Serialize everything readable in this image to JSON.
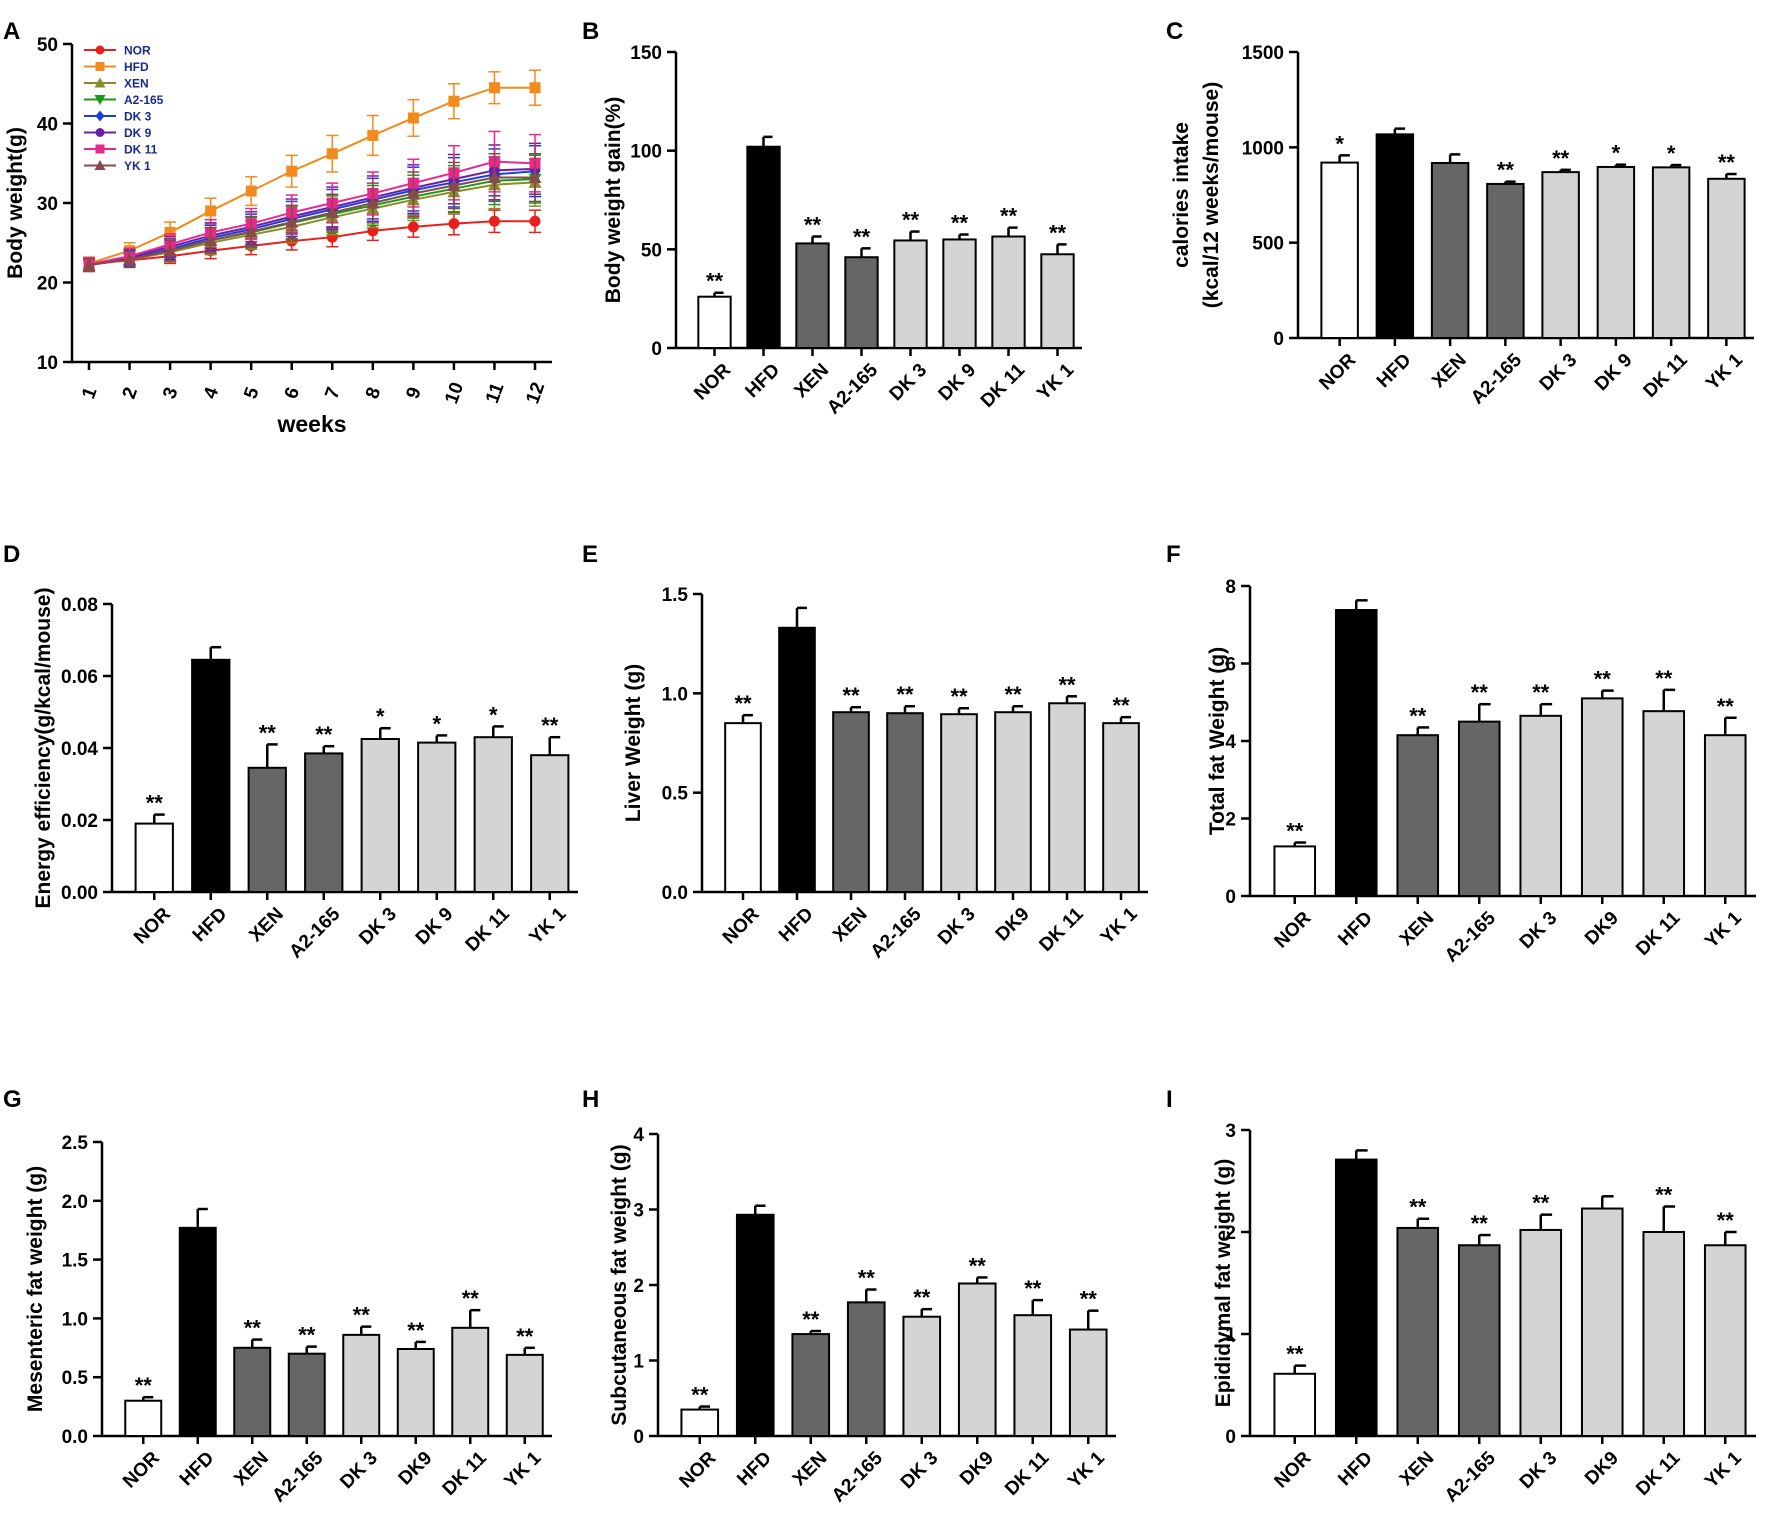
{
  "groups": [
    "NOR",
    "HFD",
    "XEN",
    "A2-165",
    "DK3",
    "DK9",
    "DK11",
    "YK1"
  ],
  "colors": {
    "NOR": "#ffffff",
    "HFD": "#000000",
    "XEN": "#666666",
    "A2-165": "#666666",
    "DK3": "#d4d4d4",
    "DK9": "#d4d4d4",
    "DK11": "#d4d4d4",
    "YK1": "#d4d4d4",
    "line_NOR": "#e8201c",
    "line_HFD": "#f28a1d",
    "line_XEN": "#8b8b2a",
    "line_A2-165": "#1a9a1a",
    "line_DK3": "#1d3fd6",
    "line_DK9": "#6a1fa8",
    "line_DK11": "#e8288c",
    "line_YK1": "#8a4a4a",
    "legend_text": "#1a2a8a"
  },
  "chart_data": [
    {
      "id": "A",
      "type": "line",
      "panel_letter": "A",
      "xlabel": "weeks",
      "ylabel": "Body weight(g)",
      "ylim": [
        10,
        50
      ],
      "yticks": [
        "10",
        "20",
        "30",
        "40",
        "50"
      ],
      "x": [
        1,
        2,
        3,
        4,
        5,
        6,
        7,
        8,
        9,
        10,
        11,
        12
      ],
      "xtick_labels": [
        "1",
        "2",
        "3",
        "4",
        "5",
        "6",
        "7",
        "8",
        "9",
        "10",
        "11",
        "12"
      ],
      "legend_labels": [
        "NOR",
        "HFD",
        "XEN",
        "A2-165",
        "DK 3",
        "DK 9",
        "DK 11",
        "YK 1"
      ],
      "legend_position": "top-left",
      "series": [
        {
          "name": "NOR",
          "marker": "circle",
          "color_key": "line_NOR",
          "values": [
            22.3,
            22.8,
            23.3,
            24.0,
            24.6,
            25.2,
            25.7,
            26.5,
            27.0,
            27.4,
            27.7,
            27.7
          ],
          "err": [
            0.8,
            0.8,
            0.9,
            1.0,
            1.1,
            1.1,
            1.2,
            1.2,
            1.3,
            1.4,
            1.4,
            1.4
          ]
        },
        {
          "name": "HFD",
          "marker": "square",
          "color_key": "line_HFD",
          "values": [
            22.4,
            24.0,
            26.3,
            29.0,
            31.5,
            34.0,
            36.2,
            38.5,
            40.7,
            42.8,
            44.5,
            44.5
          ],
          "err": [
            0.8,
            1.0,
            1.3,
            1.6,
            1.8,
            2.0,
            2.3,
            2.5,
            2.3,
            2.2,
            2.0,
            2.2
          ]
        },
        {
          "name": "XEN",
          "marker": "triangle",
          "color_key": "line_XEN",
          "values": [
            22.2,
            22.9,
            23.8,
            25.0,
            26.0,
            27.0,
            28.2,
            29.3,
            30.4,
            31.4,
            32.3,
            32.6
          ],
          "err": [
            0.8,
            1.0,
            1.2,
            1.5,
            1.8,
            2.0,
            2.2,
            2.4,
            2.6,
            2.8,
            3.0,
            3.0
          ]
        },
        {
          "name": "A2-165",
          "marker": "triangle-down",
          "color_key": "line_A2-165",
          "values": [
            22.2,
            23.0,
            24.0,
            25.3,
            26.3,
            27.5,
            28.6,
            29.7,
            30.8,
            31.8,
            32.8,
            33.0
          ],
          "err": [
            0.8,
            1.0,
            1.3,
            1.6,
            1.9,
            2.1,
            2.3,
            2.5,
            2.7,
            2.9,
            3.0,
            3.0
          ]
        },
        {
          "name": "DK 3",
          "marker": "diamond",
          "color_key": "line_DK3",
          "values": [
            22.2,
            23.0,
            24.2,
            25.6,
            26.7,
            28.0,
            29.2,
            30.4,
            31.6,
            32.6,
            33.6,
            34.0
          ],
          "err": [
            0.8,
            1.0,
            1.3,
            1.6,
            1.9,
            2.2,
            2.5,
            2.7,
            2.9,
            3.1,
            3.2,
            3.2
          ]
        },
        {
          "name": "DK 9",
          "marker": "circle",
          "color_key": "line_DK9",
          "values": [
            22.3,
            23.2,
            24.5,
            25.9,
            27.0,
            28.3,
            29.5,
            30.7,
            31.9,
            33.0,
            34.1,
            34.3
          ],
          "err": [
            0.8,
            1.0,
            1.3,
            1.6,
            1.9,
            2.2,
            2.5,
            2.7,
            2.9,
            3.1,
            3.2,
            3.2
          ]
        },
        {
          "name": "DK 11",
          "marker": "square",
          "color_key": "line_DK11",
          "values": [
            22.3,
            23.3,
            24.8,
            26.3,
            27.4,
            28.8,
            30.0,
            31.2,
            32.5,
            33.8,
            35.2,
            35.0
          ],
          "err": [
            0.8,
            1.0,
            1.3,
            1.6,
            1.9,
            2.2,
            2.5,
            2.7,
            3.0,
            3.4,
            3.8,
            3.6
          ]
        },
        {
          "name": "YK 1",
          "marker": "triangle",
          "color_key": "line_YK1",
          "values": [
            22.2,
            22.9,
            24.0,
            25.3,
            26.4,
            27.6,
            28.8,
            30.0,
            31.2,
            32.2,
            33.2,
            33.2
          ],
          "err": [
            0.8,
            1.0,
            1.3,
            1.6,
            1.9,
            2.1,
            2.3,
            2.5,
            2.7,
            2.9,
            3.0,
            3.0
          ]
        }
      ]
    },
    {
      "id": "B",
      "type": "bar",
      "panel_letter": "B",
      "ylabel": "Body weight gain(%)",
      "ylim": [
        0,
        150
      ],
      "yticks": [
        "0",
        "50",
        "100",
        "150"
      ],
      "categories": [
        "NOR",
        "HFD",
        "XEN",
        "A2-165",
        "DK 3",
        "DK 9",
        "DK 11",
        "YK 1"
      ],
      "values": [
        26,
        102,
        53,
        46,
        54.5,
        55,
        56.5,
        47.5
      ],
      "errors": [
        2,
        5,
        3.5,
        4.5,
        4.5,
        2.5,
        4.5,
        5
      ],
      "significance": [
        "**",
        "",
        "**",
        "**",
        "**",
        "**",
        "**",
        "**"
      ]
    },
    {
      "id": "C",
      "type": "bar",
      "panel_letter": "C",
      "ylabel": "calories intake",
      "ylabel2": "(kcal/12 weeks/mouse)",
      "ylim": [
        0,
        1500
      ],
      "yticks": [
        "0",
        "500",
        "1000",
        "1500"
      ],
      "categories": [
        "NOR",
        "HFD",
        "XEN",
        "A2-165",
        "DK 3",
        "DK 9",
        "DK 11",
        "YK 1"
      ],
      "values": [
        920,
        1068,
        918,
        808,
        870,
        897,
        895,
        835
      ],
      "errors": [
        38,
        30,
        45,
        12,
        12,
        12,
        12,
        25
      ],
      "significance": [
        "*",
        "",
        "",
        "**",
        "**",
        "*",
        "*",
        "**"
      ]
    },
    {
      "id": "D",
      "type": "bar",
      "panel_letter": "D",
      "ylabel": "Energy efficiency(g/kcal/mouse)",
      "ylim": [
        0,
        0.08
      ],
      "yticks": [
        "0.00",
        "0.02",
        "0.04",
        "0.06",
        "0.08"
      ],
      "categories": [
        "NOR",
        "HFD",
        "XEN",
        "A2-165",
        "DK 3",
        "DK 9",
        "DK 11",
        "YK 1"
      ],
      "values": [
        0.019,
        0.0645,
        0.0345,
        0.0385,
        0.0425,
        0.0415,
        0.043,
        0.038
      ],
      "errors": [
        0.0025,
        0.0035,
        0.0065,
        0.002,
        0.003,
        0.002,
        0.003,
        0.005
      ],
      "significance": [
        "**",
        "",
        "**",
        "**",
        "*",
        "*",
        "*",
        "**"
      ]
    },
    {
      "id": "E",
      "type": "bar",
      "panel_letter": "E",
      "ylabel": "Liver Weight (g)",
      "ylim": [
        0,
        1.5
      ],
      "yticks": [
        "0.0",
        "0.5",
        "1.0",
        "1.5"
      ],
      "categories": [
        "NOR",
        "HFD",
        "XEN",
        "A2-165",
        "DK 3",
        "DK9",
        "DK 11",
        "YK 1"
      ],
      "values": [
        0.85,
        1.33,
        0.905,
        0.9,
        0.895,
        0.905,
        0.95,
        0.85
      ],
      "errors": [
        0.04,
        0.1,
        0.025,
        0.035,
        0.03,
        0.03,
        0.035,
        0.03
      ],
      "significance": [
        "**",
        "",
        "**",
        "**",
        "**",
        "**",
        "**",
        "**"
      ]
    },
    {
      "id": "F",
      "type": "bar",
      "panel_letter": "F",
      "ylabel": "Total fat Weight (g)",
      "ylim": [
        0,
        8
      ],
      "yticks": [
        "0",
        "2",
        "4",
        "6",
        "8"
      ],
      "categories": [
        "NOR",
        "HFD",
        "XEN",
        "A2-165",
        "DK 3",
        "DK9",
        "DK 11",
        "YK 1"
      ],
      "values": [
        1.28,
        7.38,
        4.15,
        4.5,
        4.65,
        5.1,
        4.77,
        4.15
      ],
      "errors": [
        0.1,
        0.25,
        0.2,
        0.45,
        0.3,
        0.2,
        0.55,
        0.45
      ],
      "significance": [
        "**",
        "",
        "**",
        "**",
        "**",
        "**",
        "**",
        "**"
      ]
    },
    {
      "id": "G",
      "type": "bar",
      "panel_letter": "G",
      "ylabel": "Mesenteric fat weight (g)",
      "ylim": [
        0,
        2.5
      ],
      "yticks": [
        "0.0",
        "0.5",
        "1.0",
        "1.5",
        "2.0",
        "2.5"
      ],
      "categories": [
        "NOR",
        "HFD",
        "XEN",
        "A2-165",
        "DK 3",
        "DK9",
        "DK 11",
        "YK 1"
      ],
      "values": [
        0.3,
        1.77,
        0.75,
        0.7,
        0.86,
        0.74,
        0.92,
        0.69
      ],
      "errors": [
        0.03,
        0.16,
        0.07,
        0.06,
        0.07,
        0.06,
        0.15,
        0.06
      ],
      "significance": [
        "**",
        "",
        "**",
        "**",
        "**",
        "**",
        "**",
        "**"
      ]
    },
    {
      "id": "H",
      "type": "bar",
      "panel_letter": "H",
      "ylabel": "Subcutaneous fat weight (g)",
      "ylim": [
        0,
        4
      ],
      "yticks": [
        "0",
        "1",
        "2",
        "3",
        "4"
      ],
      "categories": [
        "NOR",
        "HFD",
        "XEN",
        "A2-165",
        "DK 3",
        "DK9",
        "DK 11",
        "YK 1"
      ],
      "values": [
        0.35,
        2.93,
        1.35,
        1.77,
        1.58,
        2.02,
        1.6,
        1.41
      ],
      "errors": [
        0.04,
        0.12,
        0.04,
        0.17,
        0.1,
        0.08,
        0.2,
        0.25
      ],
      "significance": [
        "**",
        "",
        "**",
        "**",
        "**",
        "**",
        "**",
        "**"
      ]
    },
    {
      "id": "I",
      "type": "bar",
      "panel_letter": "I",
      "ylabel": "Epididymal fat weight (g)",
      "ylim": [
        0,
        3
      ],
      "yticks": [
        "0",
        "1",
        "2",
        "3"
      ],
      "categories": [
        "NOR",
        "HFD",
        "XEN",
        "A2-165",
        "DK 3",
        "DK9",
        "DK 11",
        "YK 1"
      ],
      "values": [
        0.61,
        2.71,
        2.04,
        1.87,
        2.02,
        2.23,
        2.0,
        1.87
      ],
      "errors": [
        0.08,
        0.09,
        0.09,
        0.1,
        0.15,
        0.12,
        0.25,
        0.13
      ],
      "significance": [
        "**",
        "",
        "**",
        "**",
        "**",
        "",
        "**",
        "**"
      ]
    }
  ]
}
